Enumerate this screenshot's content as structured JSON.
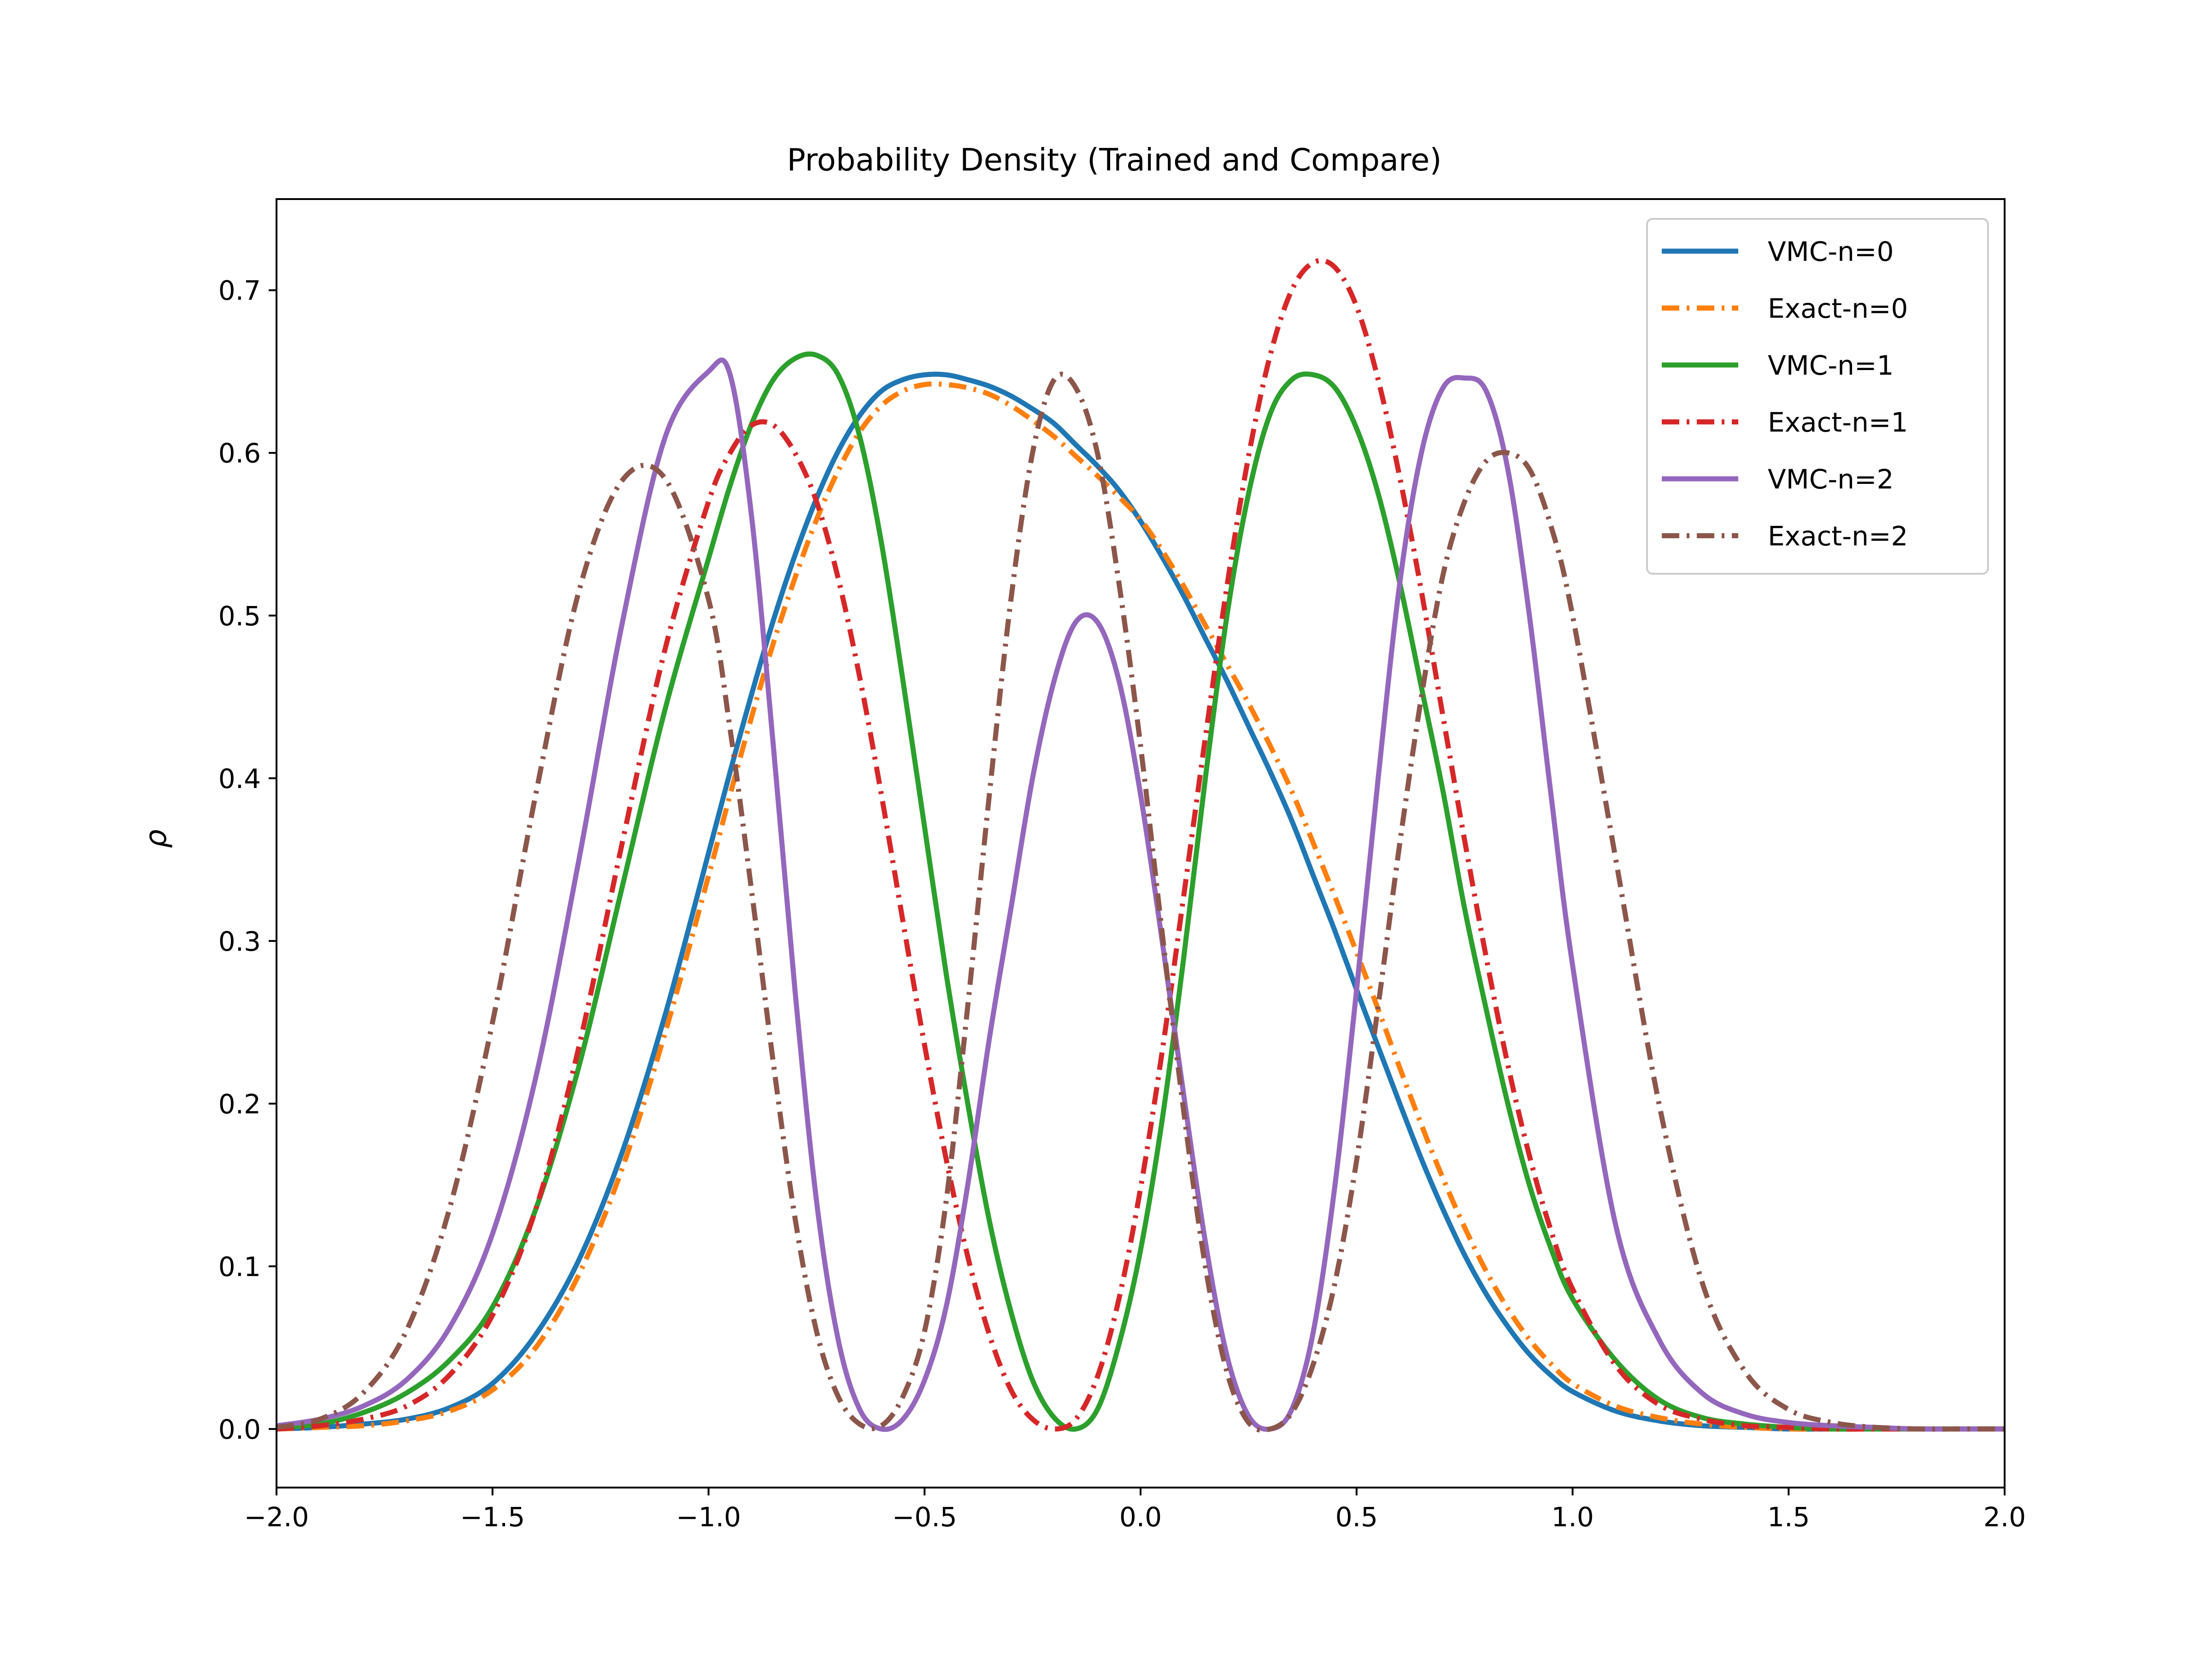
{
  "chart_data": {
    "type": "line",
    "title": "Probability Density (Trained and Compare)",
    "xlabel": "",
    "ylabel": "ρ",
    "xlim": [
      -2.0,
      2.0
    ],
    "ylim": [
      -0.036,
      0.756
    ],
    "x_ticks": [
      -2.0,
      -1.5,
      -1.0,
      -0.5,
      0.0,
      0.5,
      1.0,
      1.5,
      2.0
    ],
    "x_tick_labels": [
      "−2.0",
      "−1.5",
      "−1.0",
      "−0.5",
      "0.0",
      "0.5",
      "1.0",
      "1.5",
      "2.0"
    ],
    "y_ticks": [
      0.0,
      0.1,
      0.2,
      0.3,
      0.4,
      0.5,
      0.6,
      0.7
    ],
    "y_tick_labels": [
      "0.0",
      "0.1",
      "0.2",
      "0.3",
      "0.4",
      "0.5",
      "0.6",
      "0.7"
    ],
    "grid": false,
    "legend_position": "top-right",
    "x": [
      -2.0,
      -1.9,
      -1.8,
      -1.7,
      -1.6,
      -1.5,
      -1.4,
      -1.3,
      -1.2,
      -1.1,
      -1.0,
      -0.95,
      -0.9,
      -0.85,
      -0.8,
      -0.75,
      -0.7,
      -0.65,
      -0.6,
      -0.55,
      -0.5,
      -0.45,
      -0.4,
      -0.35,
      -0.3,
      -0.25,
      -0.2,
      -0.15,
      -0.1,
      -0.05,
      0.0,
      0.05,
      0.1,
      0.15,
      0.2,
      0.25,
      0.3,
      0.35,
      0.4,
      0.45,
      0.5,
      0.55,
      0.6,
      0.65,
      0.7,
      0.75,
      0.8,
      0.85,
      0.9,
      0.95,
      1.0,
      1.1,
      1.2,
      1.3,
      1.4,
      1.5,
      1.6,
      1.7,
      1.8,
      1.9,
      2.0
    ],
    "series": [
      {
        "name": "VMC-n=0",
        "color": "#1f77b4",
        "dash": "solid",
        "values": [
          0.0,
          0.001,
          0.003,
          0.006,
          0.013,
          0.028,
          0.058,
          0.104,
          0.17,
          0.255,
          0.354,
          0.404,
          0.452,
          0.497,
          0.537,
          0.572,
          0.601,
          0.623,
          0.638,
          0.645,
          0.648,
          0.648,
          0.645,
          0.641,
          0.635,
          0.627,
          0.618,
          0.605,
          0.592,
          0.577,
          0.558,
          0.536,
          0.512,
          0.486,
          0.46,
          0.432,
          0.404,
          0.374,
          0.34,
          0.306,
          0.27,
          0.235,
          0.2,
          0.166,
          0.135,
          0.107,
          0.083,
          0.063,
          0.046,
          0.033,
          0.023,
          0.011,
          0.005,
          0.002,
          0.001,
          0.0,
          0.0,
          0.0,
          0.0,
          0.0,
          0.0
        ]
      },
      {
        "name": "Exact-n=0",
        "color": "#ff7f0e",
        "dash": "dashdot",
        "values": [
          0.0,
          0.001,
          0.002,
          0.005,
          0.011,
          0.024,
          0.05,
          0.095,
          0.16,
          0.244,
          0.34,
          0.39,
          0.438,
          0.483,
          0.523,
          0.559,
          0.589,
          0.613,
          0.629,
          0.638,
          0.642,
          0.642,
          0.64,
          0.636,
          0.629,
          0.62,
          0.61,
          0.598,
          0.586,
          0.573,
          0.559,
          0.54,
          0.518,
          0.494,
          0.47,
          0.446,
          0.42,
          0.392,
          0.36,
          0.327,
          0.293,
          0.258,
          0.222,
          0.187,
          0.154,
          0.124,
          0.097,
          0.074,
          0.055,
          0.04,
          0.028,
          0.014,
          0.007,
          0.003,
          0.001,
          0.0,
          0.0,
          0.0,
          0.0,
          0.0,
          0.0
        ]
      },
      {
        "name": "VMC-n=1",
        "color": "#2ca02c",
        "dash": "solid",
        "values": [
          0.001,
          0.003,
          0.01,
          0.022,
          0.042,
          0.075,
          0.135,
          0.223,
          0.333,
          0.443,
          0.535,
          0.58,
          0.618,
          0.645,
          0.658,
          0.66,
          0.648,
          0.61,
          0.545,
          0.46,
          0.37,
          0.28,
          0.2,
          0.128,
          0.072,
          0.03,
          0.007,
          0.0,
          0.012,
          0.052,
          0.11,
          0.19,
          0.29,
          0.4,
          0.5,
          0.575,
          0.624,
          0.645,
          0.648,
          0.64,
          0.615,
          0.575,
          0.52,
          0.456,
          0.392,
          0.32,
          0.258,
          0.2,
          0.15,
          0.111,
          0.08,
          0.042,
          0.018,
          0.007,
          0.003,
          0.001,
          0.0,
          0.0,
          0.0,
          0.0,
          0.0
        ]
      },
      {
        "name": "Exact-n=1",
        "color": "#d62728",
        "dash": "dashdot",
        "values": [
          0.0,
          0.002,
          0.006,
          0.014,
          0.033,
          0.07,
          0.135,
          0.235,
          0.36,
          0.48,
          0.57,
          0.6,
          0.617,
          0.617,
          0.6,
          0.57,
          0.523,
          0.462,
          0.39,
          0.312,
          0.236,
          0.166,
          0.106,
          0.058,
          0.024,
          0.006,
          0.0,
          0.006,
          0.032,
          0.08,
          0.148,
          0.232,
          0.328,
          0.425,
          0.518,
          0.598,
          0.66,
          0.7,
          0.717,
          0.714,
          0.69,
          0.645,
          0.585,
          0.515,
          0.438,
          0.362,
          0.29,
          0.224,
          0.168,
          0.122,
          0.086,
          0.039,
          0.015,
          0.006,
          0.002,
          0.001,
          0.0,
          0.0,
          0.0,
          0.0,
          0.0
        ]
      },
      {
        "name": "VMC-n=2",
        "color": "#9467bd",
        "dash": "solid",
        "values": [
          0.002,
          0.006,
          0.014,
          0.03,
          0.062,
          0.12,
          0.216,
          0.35,
          0.495,
          0.61,
          0.65,
          0.648,
          0.56,
          0.42,
          0.27,
          0.14,
          0.055,
          0.012,
          0.0,
          0.006,
          0.03,
          0.075,
          0.15,
          0.24,
          0.32,
          0.4,
          0.46,
          0.496,
          0.496,
          0.46,
          0.39,
          0.3,
          0.205,
          0.115,
          0.045,
          0.008,
          0.0,
          0.012,
          0.06,
          0.15,
          0.27,
          0.4,
          0.52,
          0.6,
          0.64,
          0.646,
          0.638,
          0.59,
          0.5,
          0.39,
          0.285,
          0.125,
          0.055,
          0.022,
          0.009,
          0.004,
          0.002,
          0.001,
          0.0,
          0.0,
          0.0
        ]
      },
      {
        "name": "Exact-n=2",
        "color": "#8c564b",
        "dash": "dashdot",
        "values": [
          0.001,
          0.006,
          0.022,
          0.06,
          0.135,
          0.25,
          0.39,
          0.515,
          0.583,
          0.584,
          0.51,
          0.43,
          0.33,
          0.225,
          0.13,
          0.06,
          0.02,
          0.003,
          0.002,
          0.02,
          0.06,
          0.14,
          0.26,
          0.39,
          0.51,
          0.6,
          0.645,
          0.64,
          0.6,
          0.52,
          0.42,
          0.305,
          0.195,
          0.1,
          0.035,
          0.004,
          0.0,
          0.01,
          0.04,
          0.09,
          0.165,
          0.26,
          0.36,
          0.45,
          0.525,
          0.57,
          0.595,
          0.6,
          0.59,
          0.555,
          0.5,
          0.35,
          0.2,
          0.09,
          0.035,
          0.012,
          0.004,
          0.001,
          0.0,
          0.0,
          0.0
        ]
      }
    ]
  }
}
